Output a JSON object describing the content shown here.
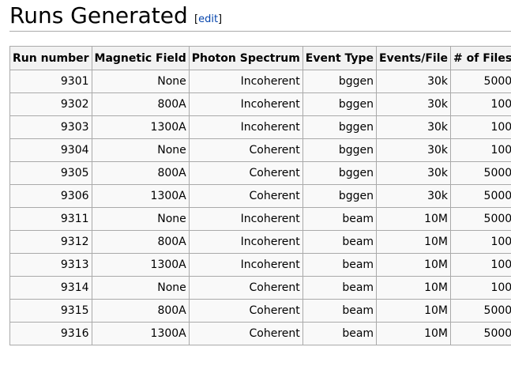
{
  "heading": {
    "title": "Runs Generated",
    "edit_open": "[",
    "edit_label": "edit",
    "edit_close": "]"
  },
  "table": {
    "columns": [
      "Run number",
      "Magnetic Field",
      "Photon Spectrum",
      "Event Type",
      "Events/File",
      "# of Files"
    ],
    "rows": [
      [
        "9301",
        "None",
        "Incoherent",
        "bggen",
        "30k",
        "5000"
      ],
      [
        "9302",
        "800A",
        "Incoherent",
        "bggen",
        "30k",
        "100"
      ],
      [
        "9303",
        "1300A",
        "Incoherent",
        "bggen",
        "30k",
        "100"
      ],
      [
        "9304",
        "None",
        "Coherent",
        "bggen",
        "30k",
        "100"
      ],
      [
        "9305",
        "800A",
        "Coherent",
        "bggen",
        "30k",
        "5000"
      ],
      [
        "9306",
        "1300A",
        "Coherent",
        "bggen",
        "30k",
        "5000"
      ],
      [
        "9311",
        "None",
        "Incoherent",
        "beam",
        "10M",
        "5000"
      ],
      [
        "9312",
        "800A",
        "Incoherent",
        "beam",
        "10M",
        "100"
      ],
      [
        "9313",
        "1300A",
        "Incoherent",
        "beam",
        "10M",
        "100"
      ],
      [
        "9314",
        "None",
        "Coherent",
        "beam",
        "10M",
        "100"
      ],
      [
        "9315",
        "800A",
        "Coherent",
        "beam",
        "10M",
        "5000"
      ],
      [
        "9316",
        "1300A",
        "Coherent",
        "beam",
        "10M",
        "5000"
      ]
    ]
  }
}
